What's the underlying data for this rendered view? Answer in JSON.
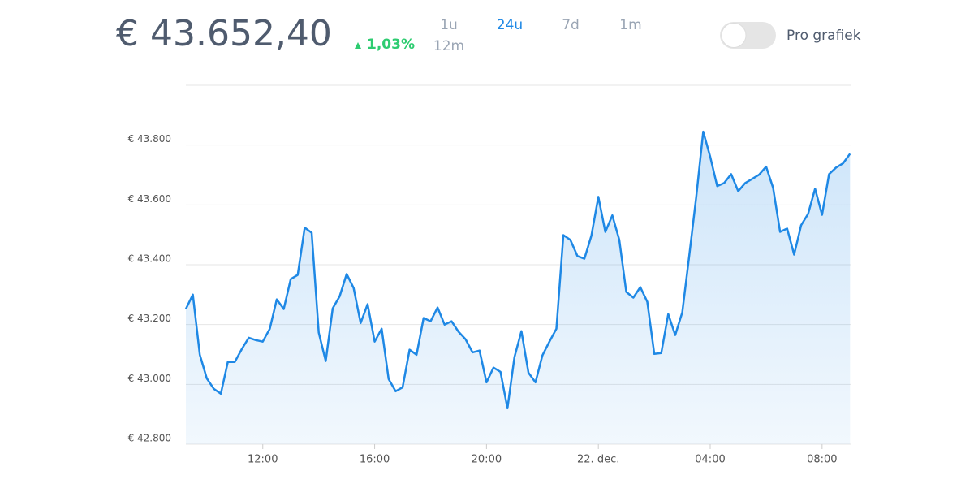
{
  "header": {
    "price": "€ 43.652,40",
    "change": "1,03%",
    "ranges": [
      {
        "label": "1u"
      },
      {
        "label": "24u",
        "active": true
      },
      {
        "label": "7d"
      },
      {
        "label": "1m"
      },
      {
        "label": "12m"
      }
    ],
    "toggle_label": "Pro grafiek"
  },
  "chart_data": {
    "type": "line",
    "color": "#1e88e5",
    "grid": true,
    "x": [
      9.25,
      9.5,
      9.75,
      10,
      10.25,
      10.5,
      10.75,
      11,
      11.25,
      11.5,
      11.75,
      12,
      12.25,
      12.5,
      12.75,
      13,
      13.25,
      13.5,
      13.75,
      14,
      14.25,
      14.5,
      14.75,
      15,
      15.25,
      15.5,
      15.75,
      16,
      16.25,
      16.5,
      16.75,
      17,
      17.25,
      17.5,
      17.75,
      18,
      18.25,
      18.5,
      18.75,
      19,
      19.25,
      19.5,
      19.75,
      20,
      20.25,
      20.5,
      20.75,
      21,
      21.25,
      21.5,
      21.75,
      22,
      22.25,
      22.5,
      22.75,
      23,
      23.25,
      23.5,
      23.75,
      24,
      24.25,
      24.5,
      24.75,
      25,
      25.25,
      25.5,
      25.75,
      26,
      26.25,
      26.5,
      26.75,
      27,
      27.25,
      27.5,
      27.75,
      28,
      28.25,
      28.5,
      28.75,
      29,
      29.25,
      29.5,
      29.75,
      30,
      30.25,
      30.5,
      30.75,
      31,
      31.25,
      31.5,
      31.75,
      32,
      32.25,
      32.5,
      32.75,
      33
    ],
    "values": [
      43252,
      43300,
      43099,
      43020,
      42985,
      42969,
      43075,
      43075,
      43118,
      43156,
      43148,
      43143,
      43186,
      43284,
      43252,
      43352,
      43366,
      43524,
      43507,
      43173,
      43078,
      43254,
      43295,
      43369,
      43322,
      43205,
      43268,
      43143,
      43186,
      43018,
      42977,
      42990,
      43116,
      43099,
      43222,
      43211,
      43257,
      43200,
      43211,
      43176,
      43151,
      43107,
      43113,
      43007,
      43056,
      43042,
      42920,
      43091,
      43178,
      43039,
      43007,
      43097,
      43143,
      43186,
      43499,
      43483,
      43429,
      43420,
      43497,
      43627,
      43510,
      43565,
      43483,
      43309,
      43290,
      43325,
      43276,
      43102,
      43105,
      43235,
      43165,
      43241,
      43431,
      43627,
      43845,
      43761,
      43663,
      43673,
      43703,
      43646,
      43673,
      43687,
      43701,
      43728,
      43657,
      43510,
      43521,
      43434,
      43532,
      43570,
      43654,
      43567,
      43703,
      43725,
      43739,
      43771
    ],
    "xlim": [
      9.25,
      33.05
    ],
    "xticks": [
      {
        "value": 12,
        "label": "12:00"
      },
      {
        "value": 16,
        "label": "16:00"
      },
      {
        "value": 20,
        "label": "20:00"
      },
      {
        "value": 24,
        "label": "22. dec."
      },
      {
        "value": 28,
        "label": "04:00"
      },
      {
        "value": 32,
        "label": "08:00"
      }
    ],
    "ylim": [
      42800,
      44000
    ],
    "yticks": [
      {
        "value": 42800,
        "label": "€ 42.800"
      },
      {
        "value": 43000,
        "label": "€ 43.000"
      },
      {
        "value": 43200,
        "label": "€ 43.200"
      },
      {
        "value": 43400,
        "label": "€ 43.400"
      },
      {
        "value": 43600,
        "label": "€ 43.600"
      },
      {
        "value": 43800,
        "label": "€ 43.800"
      }
    ]
  }
}
